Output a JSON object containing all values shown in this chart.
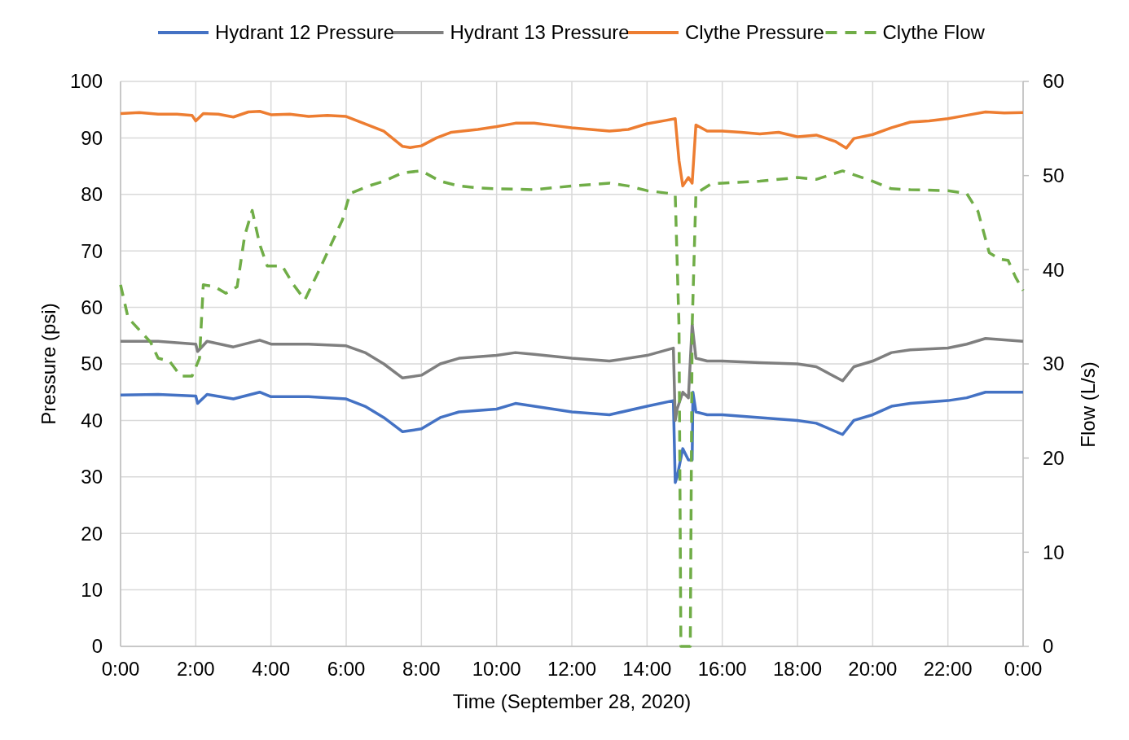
{
  "chart_data": {
    "type": "line",
    "xlabel": "Time (September 28, 2020)",
    "ylabel": "Pressure (psi)",
    "y2label": "Flow (L/s)",
    "xlim": [
      0,
      24
    ],
    "xticks": [
      {
        "value": 0,
        "label": "0:00"
      },
      {
        "value": 2,
        "label": "2:00"
      },
      {
        "value": 4,
        "label": "4:00"
      },
      {
        "value": 6,
        "label": "6:00"
      },
      {
        "value": 8,
        "label": "8:00"
      },
      {
        "value": 10,
        "label": "10:00"
      },
      {
        "value": 12,
        "label": "12:00"
      },
      {
        "value": 14,
        "label": "14:00"
      },
      {
        "value": 16,
        "label": "16:00"
      },
      {
        "value": 18,
        "label": "18:00"
      },
      {
        "value": 20,
        "label": "20:00"
      },
      {
        "value": 22,
        "label": "22:00"
      },
      {
        "value": 24,
        "label": "0:00"
      }
    ],
    "ylim": [
      0,
      100
    ],
    "yticks": [
      0,
      10,
      20,
      30,
      40,
      50,
      60,
      70,
      80,
      90,
      100
    ],
    "y2lim": [
      0,
      60
    ],
    "y2ticks": [
      0,
      10,
      20,
      30,
      40,
      50,
      60
    ],
    "grid": true,
    "legend": "top",
    "marker": "none",
    "series": [
      {
        "name": "Hydrant 12 Pressure",
        "color": "#4472c4",
        "line_style": "solid",
        "x": [
          0,
          1,
          2,
          2.05,
          2.3,
          3,
          3.7,
          4,
          5,
          6,
          6.5,
          7,
          7.5,
          8,
          8.5,
          9,
          10,
          10.5,
          11,
          12,
          13,
          14,
          14.7,
          14.75,
          14.8,
          14.95,
          15.1,
          15.2,
          15.22,
          15.3,
          15.6,
          16,
          17,
          18,
          18.5,
          19.2,
          19.5,
          20,
          20.5,
          21,
          22,
          22.5,
          23,
          24
        ],
        "values": [
          44.5,
          44.6,
          44.3,
          43,
          44.6,
          43.8,
          45,
          44.2,
          44.2,
          43.8,
          42.5,
          40.5,
          38,
          38.5,
          40.5,
          41.5,
          42,
          43,
          42.5,
          41.5,
          41,
          42.5,
          43.5,
          29,
          30,
          35,
          33,
          33,
          45,
          41.5,
          41,
          41,
          40.5,
          40,
          39.5,
          37.5,
          40,
          41,
          42.5,
          43,
          43.5,
          44,
          45,
          45
        ]
      },
      {
        "name": "Hydrant 13 Pressure",
        "color": "#7f7f7f",
        "line_style": "solid",
        "x": [
          0,
          1,
          2,
          2.05,
          2.3,
          3,
          3.7,
          4,
          5,
          6,
          6.5,
          7,
          7.5,
          8,
          8.5,
          9,
          10,
          10.5,
          11,
          12,
          13,
          14,
          14.7,
          14.75,
          14.8,
          14.95,
          15.1,
          15.2,
          15.3,
          15.6,
          16,
          17,
          18,
          18.5,
          19.2,
          19.5,
          20,
          20.5,
          21,
          22,
          22.5,
          23,
          24
        ],
        "values": [
          54,
          54,
          53.5,
          52.2,
          54,
          53,
          54.2,
          53.5,
          53.5,
          53.2,
          52,
          50,
          47.5,
          48,
          50,
          51,
          51.5,
          52,
          51.7,
          51,
          50.5,
          51.5,
          52.8,
          40,
          42,
          45,
          44,
          57,
          51,
          50.5,
          50.5,
          50.2,
          50,
          49.5,
          47,
          49.5,
          50.5,
          52,
          52.5,
          52.8,
          53.5,
          54.5,
          54
        ]
      },
      {
        "name": "Clythe Pressure",
        "color": "#ed7d31",
        "line_style": "solid",
        "x": [
          0,
          0.5,
          1,
          1.5,
          1.9,
          2,
          2.2,
          2.6,
          3,
          3.4,
          3.7,
          4,
          4.5,
          5,
          5.5,
          6,
          6.5,
          7,
          7.5,
          7.7,
          8,
          8.4,
          8.8,
          9.5,
          10,
          10.5,
          11,
          11.5,
          12,
          12.5,
          13,
          13.5,
          14,
          14.5,
          14.75,
          14.85,
          14.95,
          15.1,
          15.2,
          15.3,
          15.6,
          16,
          16.5,
          17,
          17.5,
          18,
          18.5,
          19,
          19.3,
          19.5,
          20,
          20.5,
          21,
          21.5,
          22,
          22.5,
          23,
          23.5,
          24
        ],
        "values": [
          94.3,
          94.5,
          94.2,
          94.2,
          94,
          93,
          94.3,
          94.2,
          93.7,
          94.6,
          94.7,
          94.1,
          94.2,
          93.8,
          94,
          93.8,
          92.5,
          91.2,
          88.5,
          88.3,
          88.6,
          90,
          91,
          91.5,
          92,
          92.6,
          92.6,
          92.2,
          91.8,
          91.5,
          91.2,
          91.5,
          92.5,
          93.1,
          93.4,
          86,
          81.5,
          83,
          82,
          92.3,
          91.2,
          91.2,
          91,
          90.7,
          91,
          90.2,
          90.5,
          89.4,
          88.2,
          89.9,
          90.6,
          91.8,
          92.8,
          93,
          93.4,
          94,
          94.6,
          94.4,
          94.5
        ]
      },
      {
        "name": "Clythe Flow",
        "color": "#70ad47",
        "line_style": "dashed",
        "axis": "y2",
        "x": [
          0,
          0.2,
          0.5,
          0.8,
          1,
          1.3,
          1.6,
          1.9,
          2.1,
          2.2,
          2.5,
          2.8,
          3.1,
          3.3,
          3.5,
          3.7,
          3.9,
          4.3,
          4.6,
          4.9,
          5.3,
          5.6,
          5.9,
          6.1,
          6.6,
          7,
          7.5,
          8,
          8.5,
          9,
          9.5,
          10,
          11,
          12,
          13,
          13.5,
          14,
          14.6,
          14.75,
          14.85,
          14.9,
          15.15,
          15.2,
          15.3,
          15.7,
          16,
          17,
          18,
          18.5,
          19.2,
          20,
          20.5,
          21,
          22,
          22.5,
          22.8,
          23.1,
          23.4,
          23.6,
          23.8,
          24
        ],
        "values": [
          38.4,
          34.9,
          33.6,
          32.3,
          30.6,
          30.3,
          28.7,
          28.7,
          30.6,
          38.4,
          38.2,
          37.5,
          38.2,
          43.6,
          46.3,
          42.7,
          40.4,
          40.4,
          38.4,
          36.8,
          40.1,
          42.7,
          45.3,
          48.1,
          48.9,
          49.4,
          50.3,
          50.5,
          49.4,
          48.9,
          48.7,
          48.6,
          48.5,
          48.9,
          49.2,
          48.9,
          48.4,
          48.1,
          47.9,
          34,
          0,
          0,
          34,
          48.1,
          49.1,
          49.2,
          49.4,
          49.8,
          49.6,
          50.5,
          49.4,
          48.6,
          48.5,
          48.4,
          48.1,
          46.2,
          41.8,
          41.1,
          41,
          39.2,
          37.8
        ]
      }
    ]
  }
}
